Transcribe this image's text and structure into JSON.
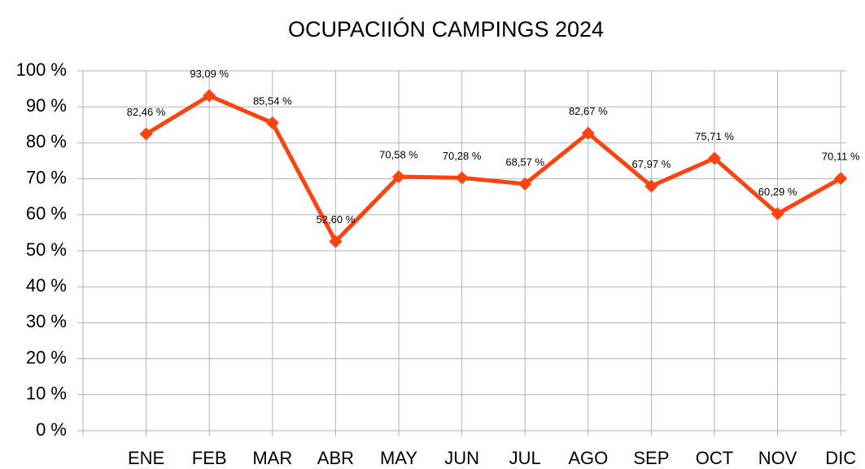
{
  "chart_data": {
    "type": "line",
    "title": "OCUPACIIÓN CAMPINGS 2024",
    "categories": [
      null,
      "ENE",
      "FEB",
      "MAR",
      "ABR",
      "MAY",
      "JUN",
      "JUL",
      "AGO",
      "SEP",
      "OCT",
      "NOV",
      "DIC"
    ],
    "series": [
      {
        "name": "Ocupación",
        "color": "#ff420e",
        "values": [
          null,
          82.46,
          93.09,
          85.54,
          52.6,
          70.58,
          70.28,
          68.57,
          82.67,
          67.97,
          75.71,
          60.29,
          70.11
        ],
        "value_labels": [
          null,
          "82,46 %",
          "93,09 %",
          "85,54 %",
          "52,60 %",
          "70,58 %",
          "70,28 %",
          "68,57 %",
          "82,67 %",
          "67,97 %",
          "75,71 %",
          "60,29 %",
          "70,11 %"
        ]
      }
    ],
    "ylim": [
      0,
      100
    ],
    "yticks": [
      {
        "value": 0,
        "label": "0 %"
      },
      {
        "value": 10,
        "label": "10 %"
      },
      {
        "value": 20,
        "label": "20 %"
      },
      {
        "value": 30,
        "label": "30 %"
      },
      {
        "value": 40,
        "label": "40 %"
      },
      {
        "value": 50,
        "label": "50 %"
      },
      {
        "value": 60,
        "label": "60 %"
      },
      {
        "value": 70,
        "label": "70 %"
      },
      {
        "value": 80,
        "label": "80 %"
      },
      {
        "value": 90,
        "label": "90 %"
      },
      {
        "value": 100,
        "label": "100 %"
      }
    ],
    "grid": true
  }
}
